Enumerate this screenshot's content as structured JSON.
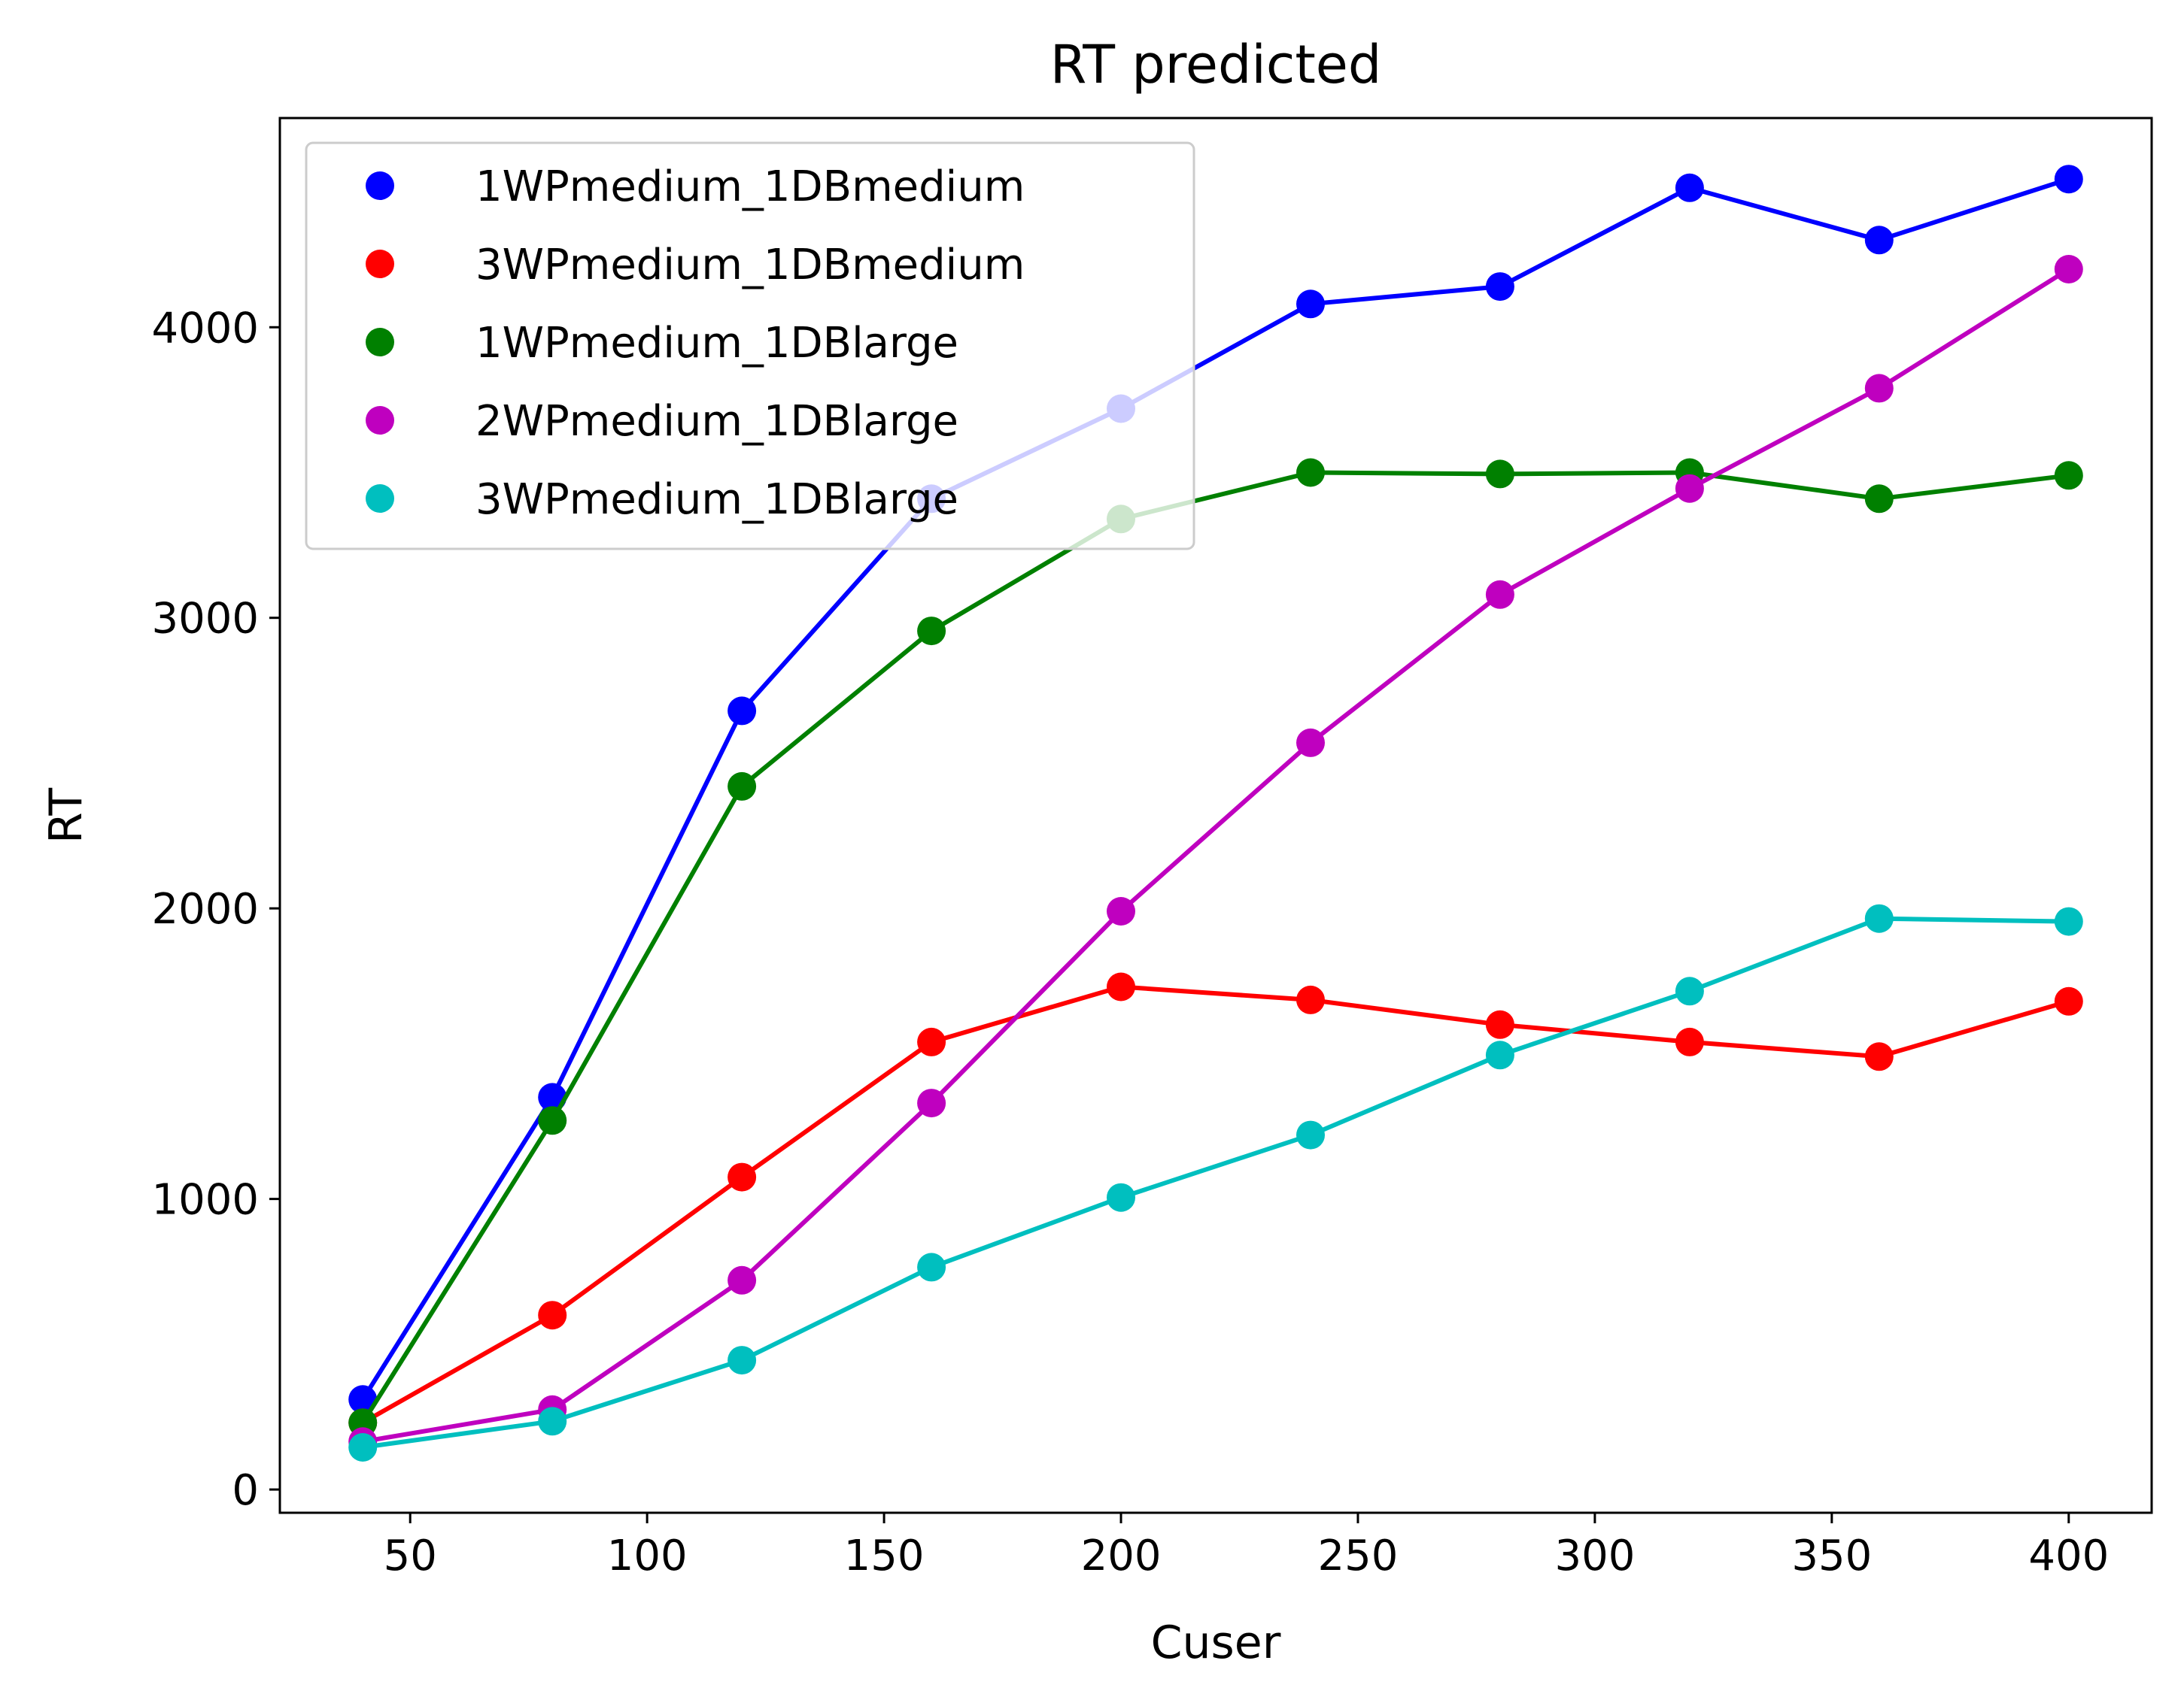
{
  "chart_data": {
    "type": "line",
    "title": "RT predicted",
    "xlabel": "Cuser",
    "ylabel": "RT",
    "xlim": [
      22.5,
      417.5
    ],
    "ylim": [
      -80,
      4720
    ],
    "xticks": [
      50,
      100,
      150,
      200,
      250,
      300,
      350,
      400
    ],
    "yticks": [
      0,
      1000,
      2000,
      3000,
      4000
    ],
    "grid": false,
    "legend_position": "upper-left",
    "x": [
      40,
      80,
      120,
      160,
      200,
      240,
      280,
      320,
      360,
      400
    ],
    "series": [
      {
        "name": "1WPmedium_1DBmedium",
        "color": "#0000ff",
        "values": [
          310,
          1350,
          2680,
          3410,
          3720,
          4080,
          4140,
          4480,
          4300,
          4510
        ]
      },
      {
        "name": "3WPmedium_1DBmedium",
        "color": "#ff0000",
        "values": [
          230,
          600,
          1075,
          1540,
          1730,
          1685,
          1600,
          1540,
          1490,
          1680
        ]
      },
      {
        "name": "1WPmedium_1DBlarge",
        "color": "#008000",
        "values": [
          230,
          1270,
          2420,
          2955,
          3340,
          3500,
          3495,
          3500,
          3410,
          3490
        ]
      },
      {
        "name": "2WPmedium_1DBlarge",
        "color": "#bf00bf",
        "values": [
          165,
          275,
          720,
          1330,
          1990,
          2570,
          3080,
          3445,
          3790,
          4200
        ]
      },
      {
        "name": "3WPmedium_1DBlarge",
        "color": "#00bfbf",
        "values": [
          145,
          235,
          445,
          765,
          1005,
          1220,
          1495,
          1715,
          1965,
          1955
        ]
      }
    ]
  }
}
